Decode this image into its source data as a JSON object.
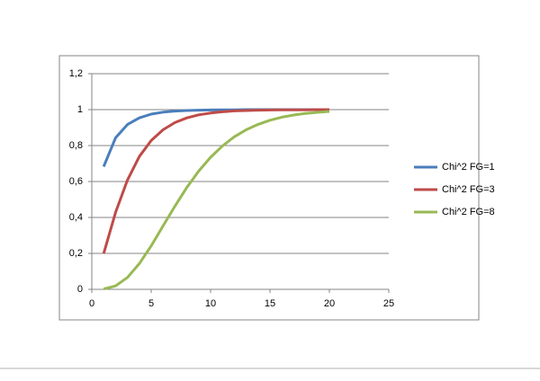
{
  "chart_data": {
    "type": "line",
    "x": [
      1,
      2,
      3,
      4,
      5,
      6,
      7,
      8,
      9,
      10,
      11,
      12,
      13,
      14,
      15,
      16,
      17,
      18,
      19,
      20
    ],
    "series": [
      {
        "name": "Chi^2 FG=1",
        "color": "#4a7ebb",
        "values": [
          0.683,
          0.843,
          0.917,
          0.954,
          0.975,
          0.986,
          0.992,
          0.995,
          0.997,
          0.998,
          0.999,
          0.999,
          1.0,
          1.0,
          1.0,
          1.0,
          1.0,
          1.0,
          1.0,
          1.0
        ]
      },
      {
        "name": "Chi^2 FG=3",
        "color": "#be4b48",
        "values": [
          0.199,
          0.428,
          0.608,
          0.739,
          0.828,
          0.888,
          0.928,
          0.954,
          0.971,
          0.981,
          0.988,
          0.993,
          0.995,
          0.997,
          0.998,
          0.999,
          0.999,
          0.999,
          1.0,
          1.0
        ]
      },
      {
        "name": "Chi^2 FG=8",
        "color": "#98b954",
        "values": [
          0.002,
          0.019,
          0.066,
          0.143,
          0.242,
          0.353,
          0.463,
          0.567,
          0.658,
          0.735,
          0.798,
          0.849,
          0.888,
          0.918,
          0.941,
          0.958,
          0.97,
          0.979,
          0.985,
          0.99
        ]
      }
    ],
    "xlim": [
      0,
      25
    ],
    "xticks": [
      0,
      5,
      10,
      15,
      20,
      25
    ],
    "ylim": [
      0,
      1.2
    ],
    "yticks": [
      0,
      {
        "value": 0.2,
        "label": "0,2"
      },
      {
        "value": 0.4,
        "label": "0,4"
      },
      {
        "value": 0.6,
        "label": "0,6"
      },
      {
        "value": 0.8,
        "label": "0,8"
      },
      1,
      {
        "value": 1.2,
        "label": "1,2"
      }
    ],
    "grid": true,
    "legend": "right"
  }
}
